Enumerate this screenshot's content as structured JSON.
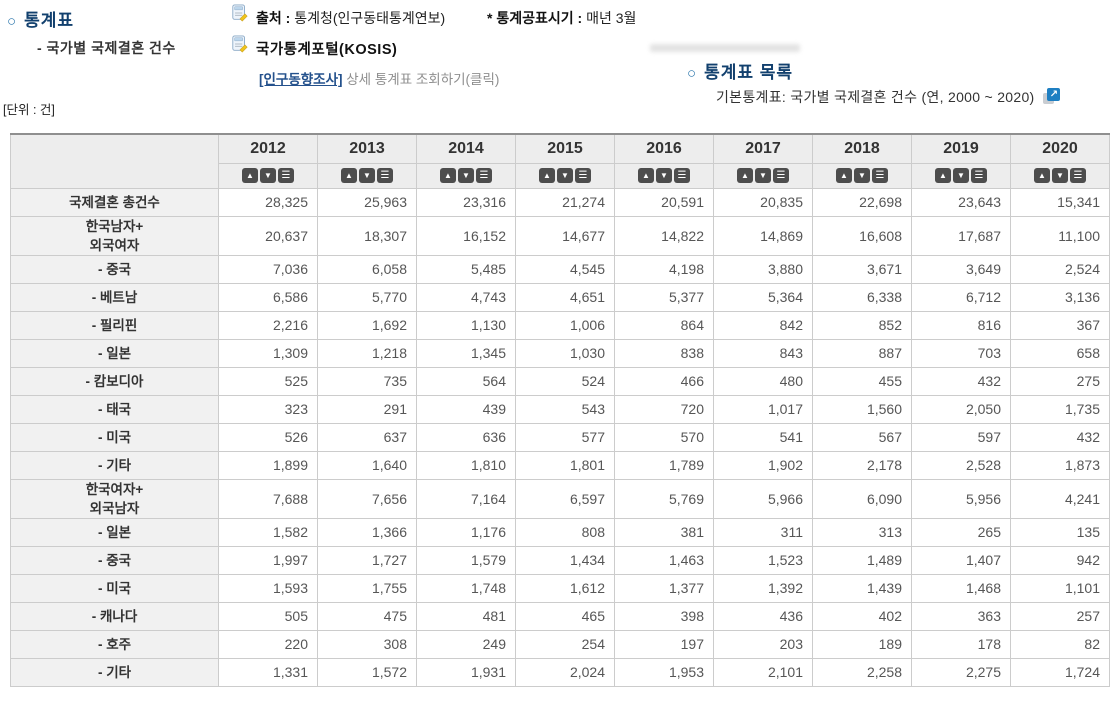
{
  "page": {
    "bullet": "○",
    "section_title": "통계표",
    "section_subtitle": "- 국가별 국제결혼 건수",
    "source_label": "출처 :",
    "source_value": "통계청(인구동태통계연보)",
    "publish_label": "* 통계공표시기 :",
    "publish_value": "매년 3월",
    "kosis_label": "국가통계포털(KOSIS)",
    "survey_link_label": "[인구동향조사]",
    "survey_link_rest": " 상세 통계표 조회하기(클릭)",
    "list_title": "통계표 목록",
    "list_item": "기본통계표: 국가별 국제결혼 건수 (연, 2000 ~ 2020)",
    "unit_label": "[단위 : 건]"
  },
  "icons": {
    "doc_edit": "document-edit-icon",
    "sort_asc": "▲",
    "sort_desc": "▼",
    "column_menu": "☰",
    "external_link": "↗"
  },
  "colors": {
    "title_navy": "#12406e",
    "bullet_blue": "#2f78ad",
    "link_navy": "#24518c",
    "muted_gray": "#8f8f8f",
    "header_bg": "#ededed",
    "row_label_bg": "#f1f1f1",
    "border": "#cccccc",
    "border_dark": "#8f8f8f",
    "sort_button_bg": "#4d4d4d",
    "external_icon_blue": "#1e7fc2"
  },
  "table": {
    "years": [
      "2012",
      "2013",
      "2014",
      "2015",
      "2016",
      "2017",
      "2018",
      "2019",
      "2020"
    ],
    "rows": [
      {
        "label": "국제결혼 총건수",
        "values": [
          "28,325",
          "25,963",
          "23,316",
          "21,274",
          "20,591",
          "20,835",
          "22,698",
          "23,643",
          "15,341"
        ]
      },
      {
        "label": "한국남자+\n외국여자",
        "values": [
          "20,637",
          "18,307",
          "16,152",
          "14,677",
          "14,822",
          "14,869",
          "16,608",
          "17,687",
          "11,100"
        ]
      },
      {
        "label": "- 중국",
        "values": [
          "7,036",
          "6,058",
          "5,485",
          "4,545",
          "4,198",
          "3,880",
          "3,671",
          "3,649",
          "2,524"
        ]
      },
      {
        "label": "- 베트남",
        "values": [
          "6,586",
          "5,770",
          "4,743",
          "4,651",
          "5,377",
          "5,364",
          "6,338",
          "6,712",
          "3,136"
        ]
      },
      {
        "label": "- 필리핀",
        "values": [
          "2,216",
          "1,692",
          "1,130",
          "1,006",
          "864",
          "842",
          "852",
          "816",
          "367"
        ]
      },
      {
        "label": "- 일본",
        "values": [
          "1,309",
          "1,218",
          "1,345",
          "1,030",
          "838",
          "843",
          "887",
          "703",
          "658"
        ]
      },
      {
        "label": "- 캄보디아",
        "values": [
          "525",
          "735",
          "564",
          "524",
          "466",
          "480",
          "455",
          "432",
          "275"
        ]
      },
      {
        "label": "- 태국",
        "values": [
          "323",
          "291",
          "439",
          "543",
          "720",
          "1,017",
          "1,560",
          "2,050",
          "1,735"
        ]
      },
      {
        "label": "- 미국",
        "values": [
          "526",
          "637",
          "636",
          "577",
          "570",
          "541",
          "567",
          "597",
          "432"
        ]
      },
      {
        "label": "- 기타",
        "values": [
          "1,899",
          "1,640",
          "1,810",
          "1,801",
          "1,789",
          "1,902",
          "2,178",
          "2,528",
          "1,873"
        ]
      },
      {
        "label": "한국여자+\n외국남자",
        "values": [
          "7,688",
          "7,656",
          "7,164",
          "6,597",
          "5,769",
          "5,966",
          "6,090",
          "5,956",
          "4,241"
        ]
      },
      {
        "label": "- 일본",
        "values": [
          "1,582",
          "1,366",
          "1,176",
          "808",
          "381",
          "311",
          "313",
          "265",
          "135"
        ]
      },
      {
        "label": "- 중국",
        "values": [
          "1,997",
          "1,727",
          "1,579",
          "1,434",
          "1,463",
          "1,523",
          "1,489",
          "1,407",
          "942"
        ]
      },
      {
        "label": "- 미국",
        "values": [
          "1,593",
          "1,755",
          "1,748",
          "1,612",
          "1,377",
          "1,392",
          "1,439",
          "1,468",
          "1,101"
        ]
      },
      {
        "label": "- 캐나다",
        "values": [
          "505",
          "475",
          "481",
          "465",
          "398",
          "436",
          "402",
          "363",
          "257"
        ]
      },
      {
        "label": "- 호주",
        "values": [
          "220",
          "308",
          "249",
          "254",
          "197",
          "203",
          "189",
          "178",
          "82"
        ]
      },
      {
        "label": "- 기타",
        "values": [
          "1,331",
          "1,572",
          "1,931",
          "2,024",
          "1,953",
          "2,101",
          "2,258",
          "2,275",
          "1,724"
        ]
      }
    ]
  }
}
